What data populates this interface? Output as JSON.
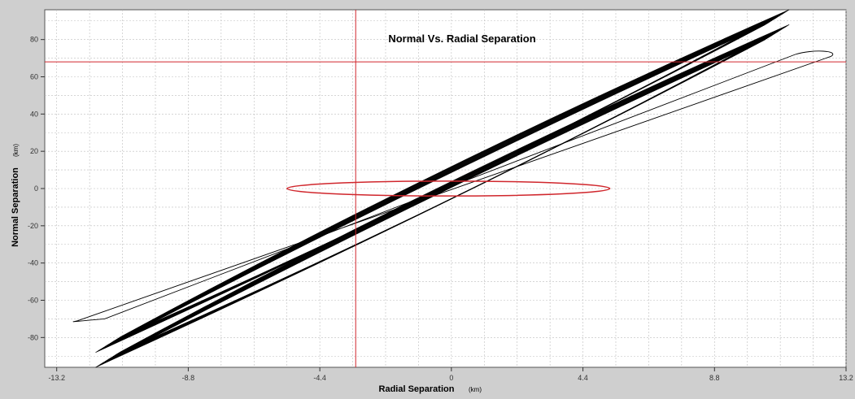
{
  "chart_data": {
    "type": "line",
    "title": "Normal Vs. Radial Separation",
    "xlabel": "Radial Separation",
    "xunit": "(km)",
    "ylabel": "Normal Separation",
    "yunit": "(km)",
    "xlim": [
      -13.6,
      13.2
    ],
    "ylim": [
      -96,
      96
    ],
    "xticks": [
      "-13.2",
      "-8.8",
      "-4.4",
      "0",
      "4.4",
      "8.8",
      "13.2"
    ],
    "xtick_values": [
      -13.2,
      -8.8,
      -4.4,
      0,
      4.4,
      8.8,
      13.2
    ],
    "yticks": [
      "80",
      "60",
      "40",
      "20",
      "0",
      "-20",
      "-40",
      "-60",
      "-80"
    ],
    "ytick_values": [
      80,
      60,
      40,
      20,
      0,
      -20,
      -40,
      -60,
      -80
    ],
    "grid": true,
    "crosshair": {
      "x": -3.2,
      "y": 68
    },
    "error_ellipse": {
      "cx": -0.1,
      "cy": 0,
      "rx": 5.4,
      "ry": 4
    },
    "series": [
      {
        "kind": "band",
        "centerline": [
          [
            -11.5,
            -88
          ],
          [
            10.9,
            88
          ]
        ],
        "offset_y": 4,
        "halfwidth_y": 4
      },
      {
        "kind": "band",
        "centerline": [
          [
            -11.5,
            -88
          ],
          [
            10.9,
            88
          ]
        ],
        "offset_y": -4,
        "halfwidth_y": 4
      },
      {
        "kind": "loop",
        "points": [
          [
            -12.5,
            -71
          ],
          [
            12.7,
            71
          ]
        ]
      }
    ],
    "colors": {
      "plot_bg": "#ffffff",
      "frame_bg": "#cfcfcf",
      "trajectory": "#000000",
      "crosshair": "#d0262c",
      "ellipse": "#d0262c",
      "grid": "#bdbdbd"
    }
  }
}
